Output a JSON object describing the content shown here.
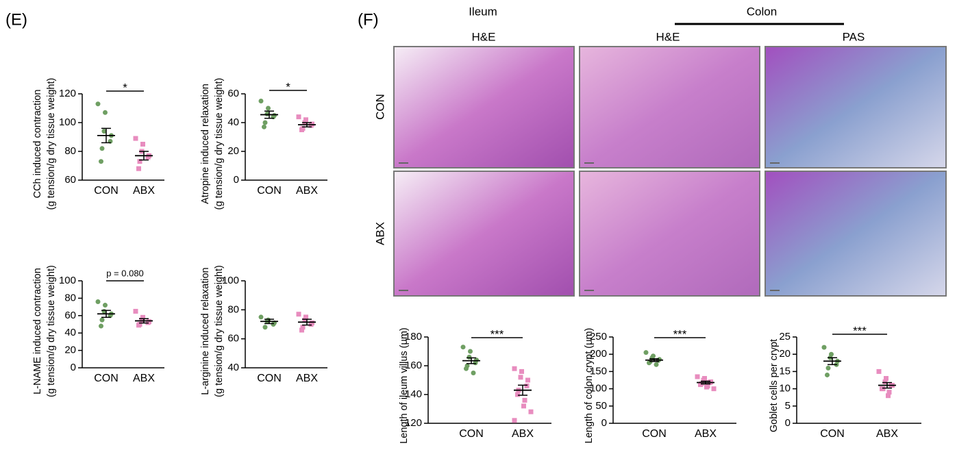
{
  "figure": {
    "panel_e": "(E)",
    "panel_f": "(F)",
    "ileum": "Ileum",
    "colon": "Colon",
    "columns": [
      "H&E",
      "H&E",
      "PAS"
    ],
    "rows": [
      "CON",
      "ABX"
    ]
  },
  "chart_data": [
    {
      "type": "dotplot",
      "ylabel": [
        "CCh induced contraction",
        "(g tension/g dry tissue weight)"
      ],
      "categories": [
        "CON",
        "ABX"
      ],
      "ylim": [
        60,
        120
      ],
      "yticks": [
        60,
        80,
        100,
        120
      ],
      "annotation": "*",
      "groups": [
        {
          "color": "#6f9f63",
          "marker": "circle",
          "values": [
            113,
            107,
            94,
            91,
            87,
            82,
            73
          ],
          "mean": 91,
          "sem": 5
        },
        {
          "color": "#e88dbf",
          "marker": "square",
          "values": [
            89,
            85,
            80,
            77,
            76,
            73,
            68
          ],
          "mean": 77,
          "sem": 3
        }
      ]
    },
    {
      "type": "dotplot",
      "ylabel": [
        "Atropine induced relaxation",
        "(g tension/g dry tissue weight)"
      ],
      "categories": [
        "CON",
        "ABX"
      ],
      "ylim": [
        0,
        60
      ],
      "yticks": [
        0,
        20,
        40,
        60
      ],
      "annotation": "*",
      "groups": [
        {
          "color": "#6f9f63",
          "marker": "circle",
          "values": [
            55,
            50,
            46,
            45,
            44,
            40,
            37
          ],
          "mean": 45.5,
          "sem": 2.5
        },
        {
          "color": "#e88dbf",
          "marker": "square",
          "values": [
            44,
            42,
            40,
            39,
            38,
            36,
            35
          ],
          "mean": 38.5,
          "sem": 1.5
        }
      ]
    },
    {
      "type": "dotplot",
      "ylabel": [
        "L-NAME induced contraction",
        "(g tension/g dry tissue weight)"
      ],
      "categories": [
        "CON",
        "ABX"
      ],
      "ylim": [
        0,
        100
      ],
      "yticks": [
        0,
        20,
        40,
        60,
        80,
        100
      ],
      "annotation": "p = 0.080",
      "groups": [
        {
          "color": "#6f9f63",
          "marker": "circle",
          "values": [
            76,
            72,
            65,
            62,
            60,
            55,
            48
          ],
          "mean": 62,
          "sem": 4
        },
        {
          "color": "#e88dbf",
          "marker": "square",
          "values": [
            65,
            58,
            55,
            53,
            52,
            50,
            49
          ],
          "mean": 54,
          "sem": 2.5
        }
      ]
    },
    {
      "type": "dotplot",
      "ylabel": [
        "L-arginine induced relaxation",
        "(g tension/g dry tissue weight)"
      ],
      "categories": [
        "CON",
        "ABX"
      ],
      "ylim": [
        40,
        100
      ],
      "yticks": [
        40,
        60,
        80,
        100
      ],
      "groups": [
        {
          "color": "#6f9f63",
          "marker": "circle",
          "values": [
            75,
            73,
            72,
            71,
            70,
            68
          ],
          "mean": 72,
          "sem": 1.5
        },
        {
          "color": "#e88dbf",
          "marker": "square",
          "values": [
            77,
            75,
            73,
            71,
            70,
            68,
            66
          ],
          "mean": 71.5,
          "sem": 2
        }
      ]
    },
    {
      "type": "dotplot",
      "ylabel": [
        "Length of ileum villus (μm)"
      ],
      "categories": [
        "CON",
        "ABX"
      ],
      "ylim": [
        120,
        180
      ],
      "yticks": [
        120,
        140,
        160,
        180
      ],
      "annotation": "***",
      "groups": [
        {
          "color": "#6f9f63",
          "marker": "circle",
          "values": [
            173,
            170,
            166,
            164,
            162,
            160,
            158,
            155
          ],
          "mean": 163.5,
          "sem": 2
        },
        {
          "color": "#e88dbf",
          "marker": "square",
          "values": [
            158,
            156,
            152,
            150,
            146,
            143,
            140,
            136,
            132,
            128,
            122
          ],
          "mean": 143,
          "sem": 3.5
        }
      ]
    },
    {
      "type": "dotplot",
      "ylabel": [
        "Length of colon crypt (μm)"
      ],
      "categories": [
        "CON",
        "ABX"
      ],
      "ylim": [
        0,
        250
      ],
      "yticks": [
        0,
        50,
        100,
        150,
        200,
        250
      ],
      "annotation": "***",
      "groups": [
        {
          "color": "#6f9f63",
          "marker": "circle",
          "values": [
            205,
            195,
            190,
            185,
            182,
            178,
            175,
            170
          ],
          "mean": 183,
          "sem": 4
        },
        {
          "color": "#e88dbf",
          "marker": "square",
          "values": [
            135,
            130,
            125,
            120,
            118,
            115,
            112,
            108,
            105,
            100
          ],
          "mean": 118,
          "sem": 4
        }
      ]
    },
    {
      "type": "dotplot",
      "ylabel": [
        "Goblet cells per crypt"
      ],
      "categories": [
        "CON",
        "ABX"
      ],
      "ylim": [
        0,
        25
      ],
      "yticks": [
        0,
        5,
        10,
        15,
        20,
        25
      ],
      "annotation": "***",
      "groups": [
        {
          "color": "#6f9f63",
          "marker": "circle",
          "values": [
            22,
            20,
            19,
            18,
            17,
            16,
            14
          ],
          "mean": 18,
          "sem": 1
        },
        {
          "color": "#e88dbf",
          "marker": "square",
          "values": [
            15,
            13,
            12,
            11,
            11,
            10,
            10,
            9,
            8
          ],
          "mean": 11,
          "sem": 0.8
        }
      ]
    }
  ]
}
